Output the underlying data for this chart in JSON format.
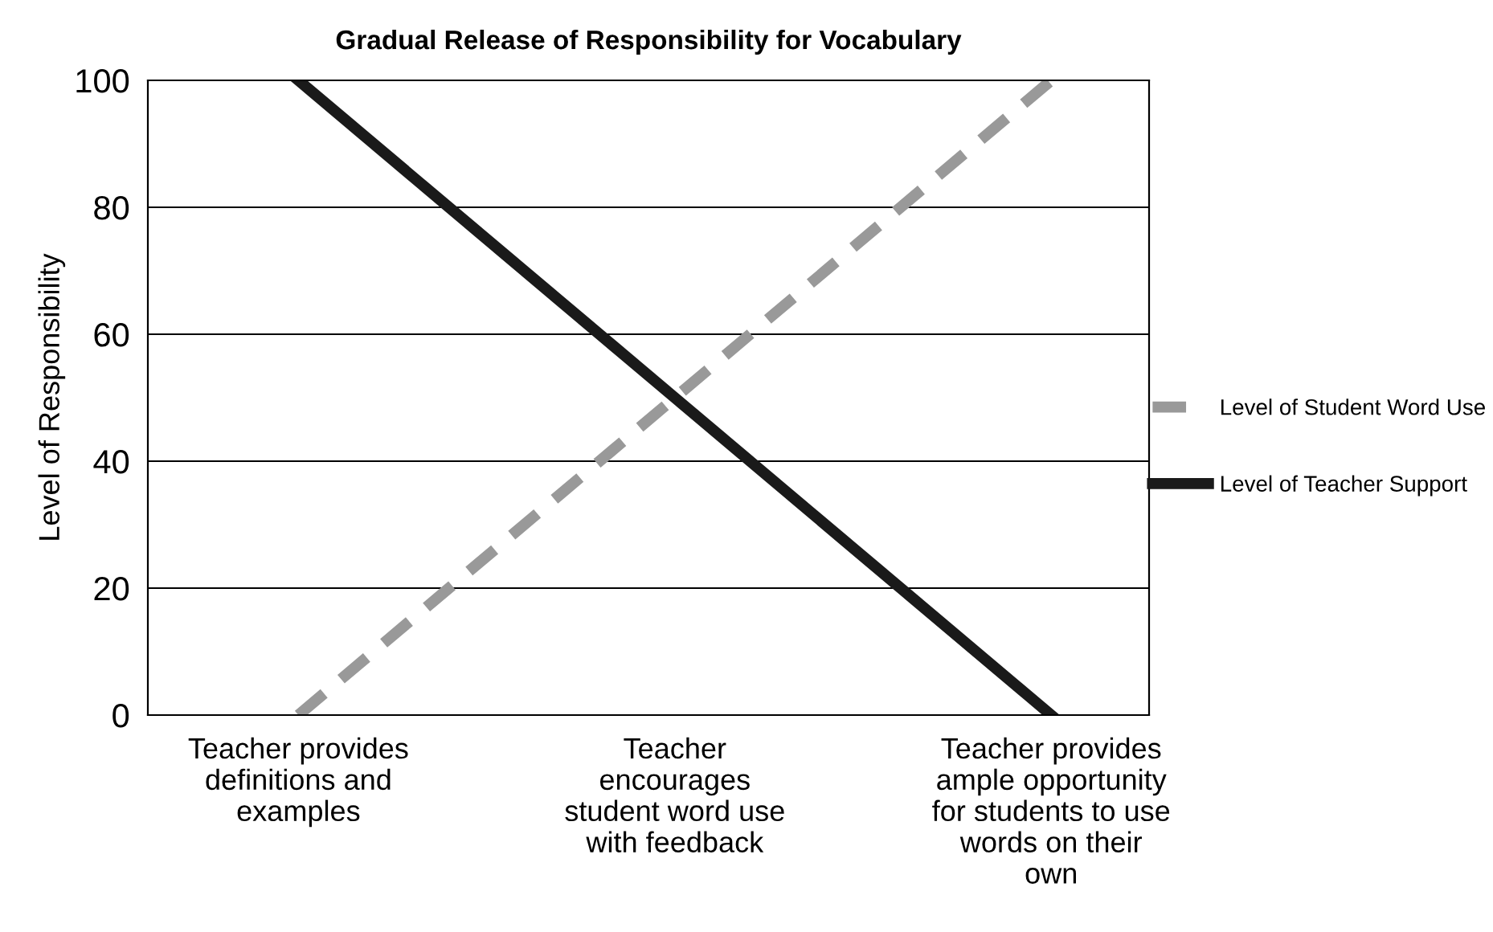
{
  "chart_data": {
    "type": "line",
    "title": "Gradual Release of Responsibility for Vocabulary",
    "ylabel": "Level of Responsibility",
    "categories": [
      "Teacher provides\ndefinitions and\nexamples",
      "Teacher\nencourages\nstudent word use\nwith feedback",
      "Teacher provides\nample opportunity\nfor students to use\nwords on their\nown"
    ],
    "series": [
      {
        "name": "Level of Student Word Use",
        "color": "#999999",
        "values": [
          0,
          50,
          100
        ],
        "line_style": "dashed"
      },
      {
        "name": "Level of Teacher Support",
        "color": "#1a1a1a",
        "values": [
          100,
          50,
          0
        ],
        "line_style": "solid"
      }
    ],
    "ylim": [
      0,
      100
    ],
    "yticks": [
      0,
      20,
      40,
      60,
      80,
      100
    ],
    "grid": "y",
    "legend": "right",
    "marker": "none"
  }
}
